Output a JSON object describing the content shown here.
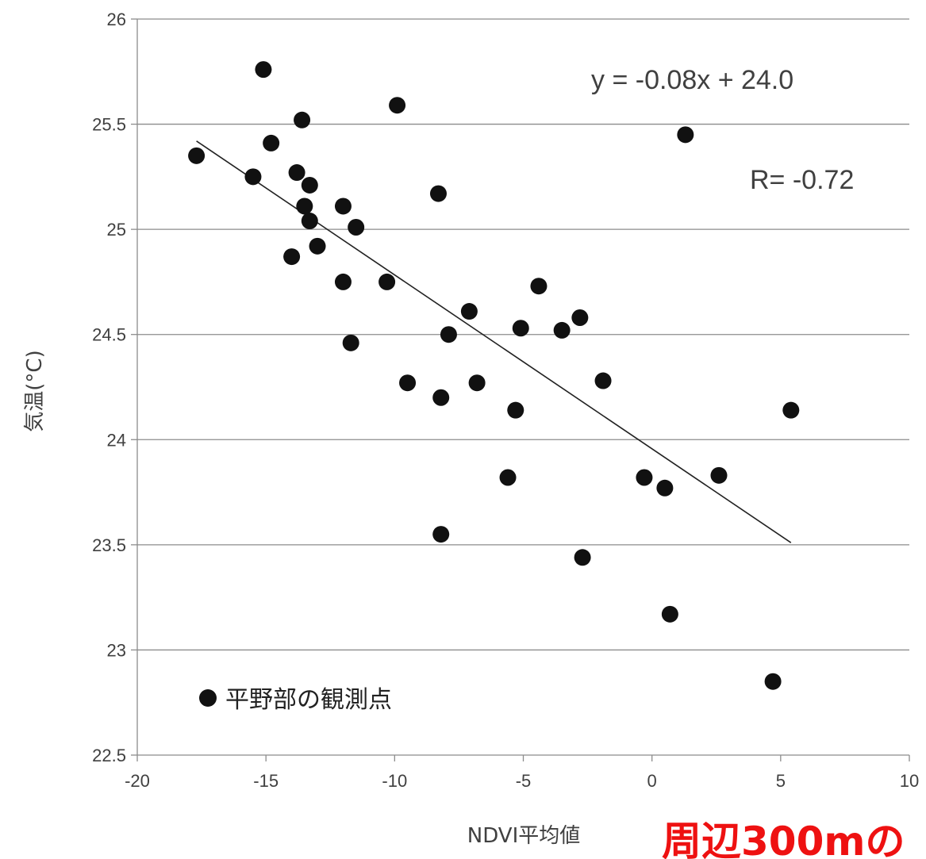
{
  "chart_data": {
    "type": "scatter",
    "title": "",
    "xlabel": "NDVI平均値",
    "ylabel": "気温(°C)",
    "xlim": [
      -20,
      10
    ],
    "ylim": [
      22.5,
      26
    ],
    "x_ticks": [
      "-20",
      "-15",
      "-10",
      "-5",
      "0",
      "5",
      "10"
    ],
    "y_ticks": [
      "22.5",
      "23",
      "23.5",
      "24",
      "24.5",
      "25",
      "25.5",
      "26"
    ],
    "grid": "horizontal",
    "series": [
      {
        "name": "平野部の観測点",
        "color": "#111111",
        "points": [
          {
            "x": -17.7,
            "y": 25.35
          },
          {
            "x": -15.5,
            "y": 25.25
          },
          {
            "x": -15.1,
            "y": 25.76
          },
          {
            "x": -14.8,
            "y": 25.41
          },
          {
            "x": -14.0,
            "y": 24.87
          },
          {
            "x": -13.8,
            "y": 25.27
          },
          {
            "x": -13.6,
            "y": 25.52
          },
          {
            "x": -13.5,
            "y": 25.11
          },
          {
            "x": -13.3,
            "y": 25.21
          },
          {
            "x": -13.3,
            "y": 25.04
          },
          {
            "x": -13.0,
            "y": 24.92
          },
          {
            "x": -12.0,
            "y": 25.11
          },
          {
            "x": -12.0,
            "y": 24.75
          },
          {
            "x": -11.7,
            "y": 24.46
          },
          {
            "x": -11.5,
            "y": 25.01
          },
          {
            "x": -10.3,
            "y": 24.75
          },
          {
            "x": -9.9,
            "y": 25.59
          },
          {
            "x": -9.5,
            "y": 24.27
          },
          {
            "x": -8.3,
            "y": 25.17
          },
          {
            "x": -8.2,
            "y": 24.2
          },
          {
            "x": -8.2,
            "y": 23.55
          },
          {
            "x": -7.9,
            "y": 24.5
          },
          {
            "x": -7.1,
            "y": 24.61
          },
          {
            "x": -6.8,
            "y": 24.27
          },
          {
            "x": -5.6,
            "y": 23.82
          },
          {
            "x": -5.3,
            "y": 24.14
          },
          {
            "x": -5.1,
            "y": 24.53
          },
          {
            "x": -4.4,
            "y": 24.73
          },
          {
            "x": -3.5,
            "y": 24.52
          },
          {
            "x": -2.8,
            "y": 24.58
          },
          {
            "x": -2.7,
            "y": 23.44
          },
          {
            "x": -1.9,
            "y": 24.28
          },
          {
            "x": -0.3,
            "y": 23.82
          },
          {
            "x": 0.5,
            "y": 23.77
          },
          {
            "x": 0.7,
            "y": 23.17
          },
          {
            "x": 1.3,
            "y": 25.45
          },
          {
            "x": 2.6,
            "y": 23.83
          },
          {
            "x": 4.7,
            "y": 22.85
          },
          {
            "x": 5.4,
            "y": 24.14
          }
        ]
      }
    ],
    "trendline": {
      "equation": "y = -0.08x + 24.0",
      "r_label": "R= -0.72",
      "x_start": -17.7,
      "y_start": 25.42,
      "x_end": 5.4,
      "y_end": 23.51
    },
    "overlay_text": {
      "text": "周辺300mの",
      "color": "#ee1111"
    }
  }
}
